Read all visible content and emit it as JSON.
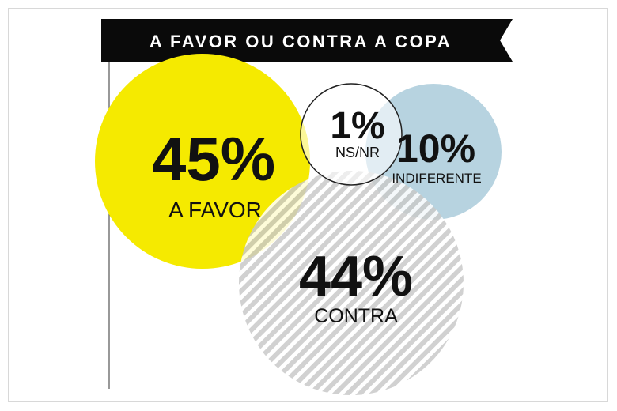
{
  "chart_data": {
    "type": "bubble",
    "title": "A FAVOR OU CONTRA A COPA",
    "series": [
      {
        "label": "A FAVOR",
        "value": 45,
        "value_text": "45%",
        "color": "#f5ea00",
        "pattern": "solid"
      },
      {
        "label": "CONTRA",
        "value": 44,
        "value_text": "44%",
        "color": "#c9c9c9",
        "pattern": "diagonal-stripes"
      },
      {
        "label": "INDIFERENTE",
        "value": 10,
        "value_text": "10%",
        "color": "#b7d3e0",
        "pattern": "solid"
      },
      {
        "label": "NS/NR",
        "value": 1,
        "value_text": "1%",
        "color": "#ffffff",
        "pattern": "outline"
      }
    ]
  }
}
